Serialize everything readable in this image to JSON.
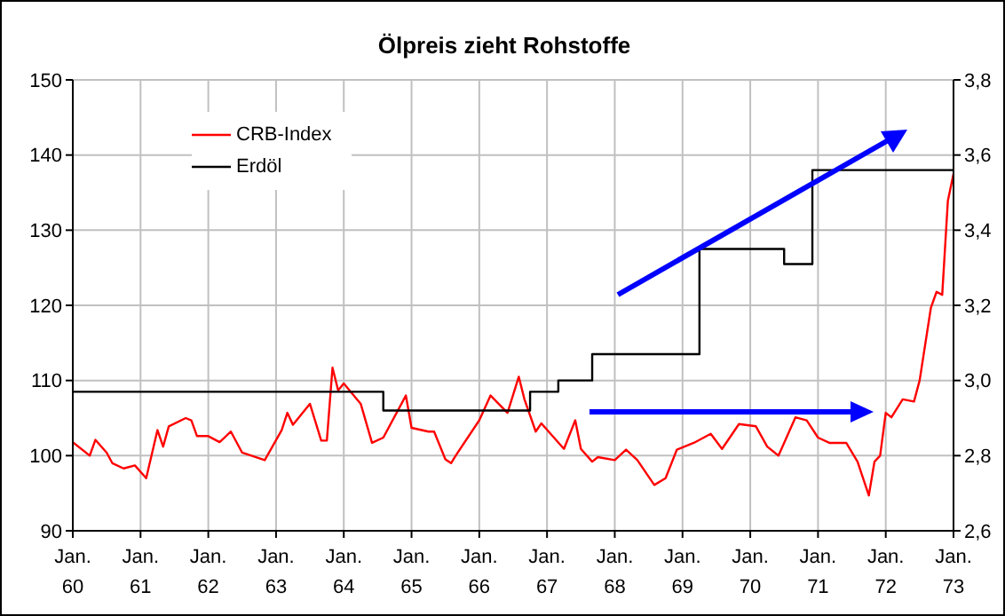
{
  "chart_data": {
    "type": "line",
    "title": "Ölpreis zieht Rohstoffe",
    "xlim": [
      "1960-01",
      "1973-01"
    ],
    "xticks": [
      {
        "value": "1960-01",
        "label": "Jan. 60"
      },
      {
        "value": "1961-01",
        "label": "Jan. 61"
      },
      {
        "value": "1962-01",
        "label": "Jan. 62"
      },
      {
        "value": "1963-01",
        "label": "Jan. 63"
      },
      {
        "value": "1964-01",
        "label": "Jan. 64"
      },
      {
        "value": "1965-01",
        "label": "Jan. 65"
      },
      {
        "value": "1966-01",
        "label": "Jan. 66"
      },
      {
        "value": "1967-01",
        "label": "Jan. 67"
      },
      {
        "value": "1968-01",
        "label": "Jan. 68"
      },
      {
        "value": "1969-01",
        "label": "Jan. 69"
      },
      {
        "value": "1970-01",
        "label": "Jan. 70"
      },
      {
        "value": "1971-01",
        "label": "Jan. 71"
      },
      {
        "value": "1972-01",
        "label": "Jan. 72"
      },
      {
        "value": "1973-01",
        "label": "Jan. 73"
      }
    ],
    "ylim": [
      90,
      150
    ],
    "yticks": [
      90,
      100,
      110,
      120,
      130,
      140,
      150
    ],
    "y2lim": [
      2.6,
      3.8
    ],
    "y2ticks": [
      {
        "value": 2.6,
        "label": "2,6"
      },
      {
        "value": 2.8,
        "label": "2,8"
      },
      {
        "value": 3.0,
        "label": "3,0"
      },
      {
        "value": 3.2,
        "label": "3,2"
      },
      {
        "value": 3.4,
        "label": "3,4"
      },
      {
        "value": 3.6,
        "label": "3,6"
      },
      {
        "value": 3.8,
        "label": "3,8"
      }
    ],
    "grid": true,
    "legend": "top left",
    "marker": "none",
    "line_style": "solid",
    "series": [
      {
        "name": "CRB-Index",
        "color": "#ff0000",
        "type": "line",
        "x": [
          "1960-01",
          "1960-04",
          "1960-05",
          "1960-07",
          "1960-08",
          "1960-10",
          "1960-12",
          "1961-02",
          "1961-04",
          "1961-05",
          "1961-06",
          "1961-09",
          "1961-10",
          "1961-11",
          "1962-01",
          "1962-03",
          "1962-05",
          "1962-07",
          "1962-11",
          "1963-02",
          "1963-03",
          "1963-04",
          "1963-07",
          "1963-09",
          "1963-10",
          "1963-11",
          "1963-12",
          "1964-01",
          "1964-04",
          "1964-06",
          "1964-08",
          "1964-12",
          "1965-01",
          "1965-04",
          "1965-05",
          "1965-07",
          "1965-08",
          "1965-09",
          "1966-01",
          "1966-03",
          "1966-06",
          "1966-08",
          "1966-09",
          "1966-11",
          "1966-12",
          "1967-04",
          "1967-06",
          "1967-07",
          "1967-09",
          "1967-10",
          "1968-01",
          "1968-03",
          "1968-05",
          "1968-08",
          "1968-10",
          "1968-12",
          "1969-03",
          "1969-06",
          "1969-08",
          "1969-11",
          "1970-02",
          "1970-04",
          "1970-06",
          "1970-07",
          "1970-09",
          "1970-11",
          "1971-01",
          "1971-03",
          "1971-06",
          "1971-08",
          "1971-10",
          "1971-11",
          "1971-12",
          "1972-01",
          "1972-02",
          "1972-04",
          "1972-06",
          "1972-07",
          "1972-09",
          "1972-10",
          "1972-11",
          "1972-12",
          "1973-01"
        ],
        "values": [
          101.8,
          100.0,
          102.1,
          100.4,
          99.0,
          98.3,
          98.7,
          97.0,
          103.4,
          101.2,
          103.9,
          105.0,
          104.7,
          102.6,
          102.6,
          101.8,
          103.2,
          100.4,
          99.4,
          103.4,
          105.7,
          104.1,
          106.9,
          102.0,
          102.0,
          111.7,
          108.7,
          109.6,
          106.9,
          101.7,
          102.4,
          108.0,
          103.7,
          103.2,
          103.2,
          99.5,
          99.0,
          100.2,
          104.7,
          108.0,
          105.7,
          110.5,
          107.5,
          103.2,
          104.3,
          100.9,
          104.7,
          100.9,
          99.2,
          99.8,
          99.4,
          100.8,
          99.4,
          96.1,
          97.0,
          100.8,
          101.7,
          102.9,
          100.9,
          104.2,
          103.9,
          101.2,
          100.0,
          101.7,
          105.1,
          104.7,
          102.4,
          101.7,
          101.7,
          99.2,
          94.7,
          99.2,
          100.0,
          105.7,
          105.1,
          107.5,
          107.2,
          110.0,
          119.7,
          121.8,
          121.4,
          133.9,
          137.5
        ]
      },
      {
        "name": "Erdöl",
        "color": "#000000",
        "type": "step",
        "axis": "y2",
        "x": [
          "1960-01",
          "1964-08",
          "1966-10",
          "1967-03",
          "1967-09",
          "1969-04",
          "1970-07",
          "1970-12",
          "1973-01"
        ],
        "values": [
          2.97,
          2.92,
          2.97,
          3.0,
          3.07,
          3.35,
          3.31,
          3.56,
          3.56
        ]
      }
    ]
  }
}
